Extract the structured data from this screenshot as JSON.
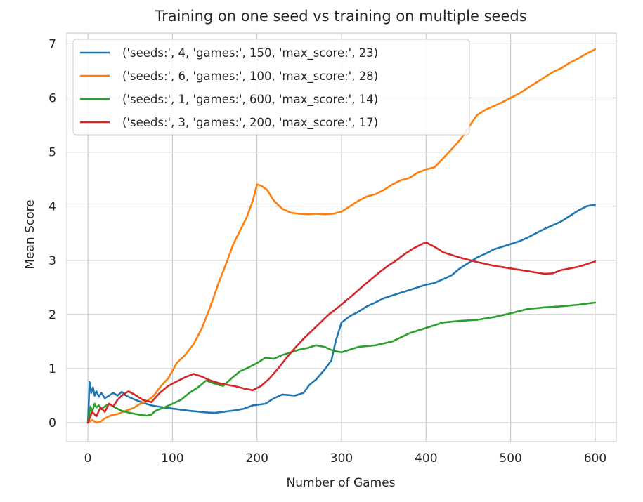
{
  "chart_data": {
    "type": "line",
    "title": "Training on one seed vs training on multiple seeds",
    "xlabel": "Number of Games",
    "ylabel": "Mean Score",
    "xlim": [
      -25,
      625
    ],
    "ylim": [
      -0.35,
      7.2
    ],
    "xticks": [
      0,
      100,
      200,
      300,
      400,
      500,
      600
    ],
    "yticks": [
      0,
      1,
      2,
      3,
      4,
      5,
      6,
      7
    ],
    "grid": true,
    "legend_position": "upper-left",
    "series": [
      {
        "name": "('seeds:', 4, 'games:', 150, 'max_score:', 23)",
        "color": "#1f77b4",
        "points": [
          [
            0,
            0
          ],
          [
            2,
            0.75
          ],
          [
            4,
            0.55
          ],
          [
            6,
            0.65
          ],
          [
            8,
            0.5
          ],
          [
            10,
            0.58
          ],
          [
            13,
            0.48
          ],
          [
            16,
            0.55
          ],
          [
            20,
            0.45
          ],
          [
            25,
            0.5
          ],
          [
            30,
            0.55
          ],
          [
            35,
            0.5
          ],
          [
            40,
            0.57
          ],
          [
            45,
            0.5
          ],
          [
            55,
            0.43
          ],
          [
            65,
            0.37
          ],
          [
            75,
            0.32
          ],
          [
            90,
            0.28
          ],
          [
            105,
            0.25
          ],
          [
            120,
            0.22
          ],
          [
            140,
            0.19
          ],
          [
            150,
            0.18
          ],
          [
            160,
            0.2
          ],
          [
            175,
            0.23
          ],
          [
            185,
            0.26
          ],
          [
            195,
            0.32
          ],
          [
            210,
            0.35
          ],
          [
            220,
            0.45
          ],
          [
            230,
            0.52
          ],
          [
            245,
            0.5
          ],
          [
            255,
            0.55
          ],
          [
            262,
            0.7
          ],
          [
            270,
            0.8
          ],
          [
            280,
            0.98
          ],
          [
            288,
            1.15
          ],
          [
            293,
            1.5
          ],
          [
            300,
            1.85
          ],
          [
            310,
            1.97
          ],
          [
            320,
            2.05
          ],
          [
            330,
            2.15
          ],
          [
            340,
            2.22
          ],
          [
            350,
            2.3
          ],
          [
            360,
            2.35
          ],
          [
            370,
            2.4
          ],
          [
            380,
            2.45
          ],
          [
            390,
            2.5
          ],
          [
            400,
            2.55
          ],
          [
            410,
            2.58
          ],
          [
            420,
            2.65
          ],
          [
            430,
            2.72
          ],
          [
            440,
            2.85
          ],
          [
            450,
            2.95
          ],
          [
            460,
            3.05
          ],
          [
            470,
            3.12
          ],
          [
            480,
            3.2
          ],
          [
            490,
            3.25
          ],
          [
            500,
            3.3
          ],
          [
            510,
            3.35
          ],
          [
            520,
            3.42
          ],
          [
            530,
            3.5
          ],
          [
            540,
            3.58
          ],
          [
            550,
            3.65
          ],
          [
            560,
            3.72
          ],
          [
            570,
            3.82
          ],
          [
            580,
            3.92
          ],
          [
            590,
            4.0
          ],
          [
            600,
            4.03
          ]
        ]
      },
      {
        "name": "('seeds:', 6, 'games:', 100, 'max_score:', 28)",
        "color": "#ff7f0e",
        "points": [
          [
            0,
            0
          ],
          [
            5,
            0.05
          ],
          [
            10,
            0.0
          ],
          [
            15,
            0.02
          ],
          [
            20,
            0.08
          ],
          [
            28,
            0.14
          ],
          [
            35,
            0.16
          ],
          [
            45,
            0.22
          ],
          [
            55,
            0.28
          ],
          [
            62,
            0.35
          ],
          [
            70,
            0.4
          ],
          [
            78,
            0.5
          ],
          [
            85,
            0.65
          ],
          [
            95,
            0.82
          ],
          [
            105,
            1.1
          ],
          [
            115,
            1.25
          ],
          [
            125,
            1.45
          ],
          [
            135,
            1.75
          ],
          [
            145,
            2.15
          ],
          [
            155,
            2.6
          ],
          [
            165,
            3.0
          ],
          [
            172,
            3.3
          ],
          [
            180,
            3.55
          ],
          [
            188,
            3.8
          ],
          [
            195,
            4.1
          ],
          [
            200,
            4.4
          ],
          [
            205,
            4.38
          ],
          [
            212,
            4.3
          ],
          [
            220,
            4.1
          ],
          [
            230,
            3.95
          ],
          [
            240,
            3.88
          ],
          [
            250,
            3.86
          ],
          [
            260,
            3.85
          ],
          [
            270,
            3.86
          ],
          [
            280,
            3.85
          ],
          [
            290,
            3.86
          ],
          [
            300,
            3.9
          ],
          [
            310,
            4.0
          ],
          [
            320,
            4.1
          ],
          [
            330,
            4.18
          ],
          [
            340,
            4.22
          ],
          [
            350,
            4.3
          ],
          [
            360,
            4.4
          ],
          [
            370,
            4.48
          ],
          [
            380,
            4.52
          ],
          [
            390,
            4.62
          ],
          [
            400,
            4.68
          ],
          [
            410,
            4.72
          ],
          [
            420,
            4.88
          ],
          [
            430,
            5.05
          ],
          [
            440,
            5.22
          ],
          [
            450,
            5.45
          ],
          [
            460,
            5.68
          ],
          [
            470,
            5.78
          ],
          [
            480,
            5.85
          ],
          [
            490,
            5.92
          ],
          [
            500,
            6.0
          ],
          [
            510,
            6.08
          ],
          [
            520,
            6.18
          ],
          [
            530,
            6.28
          ],
          [
            540,
            6.38
          ],
          [
            550,
            6.48
          ],
          [
            560,
            6.55
          ],
          [
            570,
            6.65
          ],
          [
            580,
            6.73
          ],
          [
            590,
            6.82
          ],
          [
            600,
            6.9
          ]
        ]
      },
      {
        "name": "('seeds:', 1, 'games:', 600, 'max_score:', 14)",
        "color": "#2ca02c",
        "points": [
          [
            0,
            0
          ],
          [
            3,
            0.3
          ],
          [
            5,
            0.2
          ],
          [
            8,
            0.35
          ],
          [
            10,
            0.28
          ],
          [
            13,
            0.32
          ],
          [
            16,
            0.25
          ],
          [
            20,
            0.3
          ],
          [
            25,
            0.35
          ],
          [
            32,
            0.28
          ],
          [
            40,
            0.22
          ],
          [
            50,
            0.18
          ],
          [
            60,
            0.15
          ],
          [
            70,
            0.13
          ],
          [
            75,
            0.15
          ],
          [
            80,
            0.22
          ],
          [
            90,
            0.28
          ],
          [
            100,
            0.35
          ],
          [
            110,
            0.42
          ],
          [
            120,
            0.55
          ],
          [
            130,
            0.65
          ],
          [
            140,
            0.78
          ],
          [
            150,
            0.72
          ],
          [
            160,
            0.68
          ],
          [
            170,
            0.82
          ],
          [
            180,
            0.95
          ],
          [
            190,
            1.02
          ],
          [
            200,
            1.1
          ],
          [
            210,
            1.2
          ],
          [
            220,
            1.18
          ],
          [
            230,
            1.25
          ],
          [
            240,
            1.3
          ],
          [
            250,
            1.35
          ],
          [
            260,
            1.38
          ],
          [
            270,
            1.43
          ],
          [
            280,
            1.4
          ],
          [
            290,
            1.33
          ],
          [
            300,
            1.3
          ],
          [
            310,
            1.35
          ],
          [
            320,
            1.4
          ],
          [
            340,
            1.43
          ],
          [
            360,
            1.5
          ],
          [
            380,
            1.65
          ],
          [
            400,
            1.75
          ],
          [
            420,
            1.85
          ],
          [
            440,
            1.88
          ],
          [
            460,
            1.9
          ],
          [
            480,
            1.95
          ],
          [
            500,
            2.02
          ],
          [
            520,
            2.1
          ],
          [
            540,
            2.13
          ],
          [
            560,
            2.15
          ],
          [
            580,
            2.18
          ],
          [
            600,
            2.22
          ]
        ]
      },
      {
        "name": "('seeds:', 3, 'games:', 200, 'max_score:', 17)",
        "color": "#d62728",
        "points": [
          [
            0,
            0
          ],
          [
            5,
            0.2
          ],
          [
            10,
            0.12
          ],
          [
            15,
            0.28
          ],
          [
            20,
            0.2
          ],
          [
            25,
            0.35
          ],
          [
            30,
            0.3
          ],
          [
            35,
            0.42
          ],
          [
            40,
            0.5
          ],
          [
            48,
            0.58
          ],
          [
            55,
            0.52
          ],
          [
            65,
            0.42
          ],
          [
            75,
            0.38
          ],
          [
            85,
            0.55
          ],
          [
            95,
            0.68
          ],
          [
            105,
            0.76
          ],
          [
            115,
            0.84
          ],
          [
            125,
            0.9
          ],
          [
            135,
            0.85
          ],
          [
            145,
            0.78
          ],
          [
            155,
            0.73
          ],
          [
            165,
            0.7
          ],
          [
            175,
            0.67
          ],
          [
            185,
            0.63
          ],
          [
            195,
            0.6
          ],
          [
            205,
            0.68
          ],
          [
            215,
            0.82
          ],
          [
            225,
            1.0
          ],
          [
            235,
            1.2
          ],
          [
            245,
            1.38
          ],
          [
            255,
            1.55
          ],
          [
            265,
            1.7
          ],
          [
            275,
            1.85
          ],
          [
            285,
            2.0
          ],
          [
            295,
            2.12
          ],
          [
            305,
            2.25
          ],
          [
            315,
            2.38
          ],
          [
            325,
            2.52
          ],
          [
            335,
            2.65
          ],
          [
            345,
            2.78
          ],
          [
            355,
            2.9
          ],
          [
            365,
            3.0
          ],
          [
            375,
            3.12
          ],
          [
            385,
            3.22
          ],
          [
            395,
            3.3
          ],
          [
            400,
            3.33
          ],
          [
            410,
            3.25
          ],
          [
            420,
            3.15
          ],
          [
            430,
            3.1
          ],
          [
            440,
            3.05
          ],
          [
            460,
            2.97
          ],
          [
            480,
            2.9
          ],
          [
            500,
            2.85
          ],
          [
            520,
            2.8
          ],
          [
            540,
            2.75
          ],
          [
            550,
            2.76
          ],
          [
            560,
            2.82
          ],
          [
            570,
            2.85
          ],
          [
            580,
            2.88
          ],
          [
            590,
            2.93
          ],
          [
            600,
            2.98
          ]
        ]
      }
    ]
  }
}
